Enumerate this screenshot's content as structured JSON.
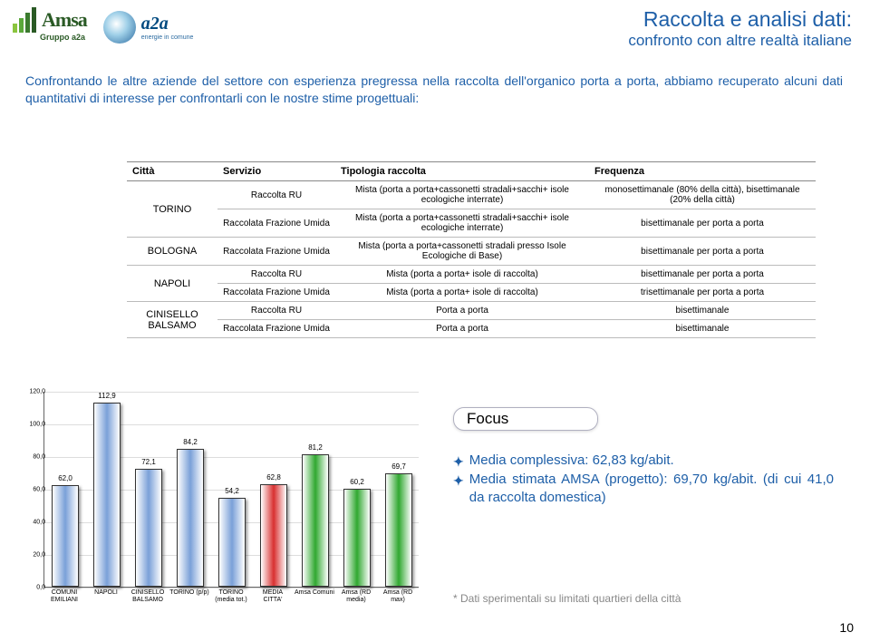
{
  "logos": {
    "amsa_name": "Amsa",
    "amsa_sub": "Gruppo a2a",
    "a2a_name": "a2a",
    "a2a_sub": "energie in comune"
  },
  "title": {
    "main": "Raccolta e analisi dati:",
    "sub": "confronto con altre realtà italiane"
  },
  "intro": "Confrontando le altre aziende del settore con esperienza pregressa nella raccolta dell'organico porta a porta, abbiamo recuperato alcuni dati quantitativi di interesse per confrontarli con le nostre stime progettuali:",
  "table": {
    "headers": [
      "Città",
      "Servizio",
      "Tipologia raccolta",
      "Frequenza"
    ],
    "rows": [
      {
        "city": "TORINO",
        "rowspan": 2,
        "service": "Raccolta RU",
        "tipo": "Mista (porta a porta+cassonetti stradali+sacchi+ isole ecologiche interrate)",
        "freq": "monosettimanale (80% della città), bisettimanale (20% della città)"
      },
      {
        "service": "Raccolata Frazione Umida",
        "tipo": "Mista (porta a porta+cassonetti stradali+sacchi+ isole ecologiche interrate)",
        "freq": "bisettimanale per porta a porta"
      },
      {
        "city": "BOLOGNA",
        "rowspan": 1,
        "service": "Raccolata Frazione Umida",
        "tipo": "Mista (porta a porta+cassonetti stradali presso Isole Ecologiche di Base)",
        "freq": "bisettimanale per porta a porta"
      },
      {
        "city": "NAPOLI",
        "rowspan": 2,
        "service": "Raccolta RU",
        "tipo": "Mista (porta a porta+ isole di raccolta)",
        "freq": "bisettimanale per porta a porta"
      },
      {
        "service": "Raccolata Frazione Umida",
        "tipo": "Mista (porta a porta+ isole di raccolta)",
        "freq": "trisettimanale per porta a porta"
      },
      {
        "city": "CINISELLO BALSAMO",
        "rowspan": 2,
        "service": "Raccolta RU",
        "tipo": "Porta a porta",
        "freq": "bisettimanale"
      },
      {
        "service": "Raccolata Frazione Umida",
        "tipo": "Porta a porta",
        "freq": "bisettimanale"
      }
    ]
  },
  "focus": "Focus",
  "bullets": {
    "line1": "Media complessiva: 62,83 kg/abit.",
    "line2": "Media stimata AMSA (progetto): 69,70 kg/abit. (di cui 41,0 da raccolta domestica)"
  },
  "footnote": "* Dati sperimentali su limitati quartieri della città",
  "pagenum": "10",
  "chart": {
    "type": "bar",
    "ylim": [
      0,
      120
    ],
    "ytick_step": 20,
    "ylabels": [
      "0,0",
      "20,0",
      "40,0",
      "60,0",
      "80,0",
      "100,0",
      "120,0"
    ],
    "categories": [
      "COMUNI EMILIANI",
      "NAPOLI",
      "CINISELLO BALSAMO",
      "TORINO (p/p)",
      "TORINO (media tot.)",
      "MEDIA CITTA'",
      "Amsa Comuni",
      "Amsa (RD media)",
      "Amsa (RD max)"
    ],
    "values": [
      62.0,
      112.9,
      72.1,
      84.2,
      54.2,
      62.8,
      81.2,
      60.2,
      69.7
    ],
    "value_labels": [
      "62,0",
      "112,9",
      "72,1",
      "84,2",
      "54,2",
      "62,8",
      "81,2",
      "60,2",
      "69,7"
    ],
    "bar_gradients": [
      [
        "#ffffff",
        "#7aa0d8",
        "#ffffff"
      ],
      [
        "#ffffff",
        "#7aa0d8",
        "#ffffff"
      ],
      [
        "#ffffff",
        "#7aa0d8",
        "#ffffff"
      ],
      [
        "#ffffff",
        "#7aa0d8",
        "#ffffff"
      ],
      [
        "#ffffff",
        "#7aa0d8",
        "#ffffff"
      ],
      [
        "#ffffff",
        "#d83030",
        "#ffffff"
      ],
      [
        "#ffffff",
        "#30a830",
        "#ffffff"
      ],
      [
        "#ffffff",
        "#30a830",
        "#ffffff"
      ],
      [
        "#ffffff",
        "#30a830",
        "#ffffff"
      ]
    ],
    "grid_color": "#dddddd",
    "axis_color": "#666666",
    "label_fontsize": 7,
    "value_fontsize": 8
  }
}
